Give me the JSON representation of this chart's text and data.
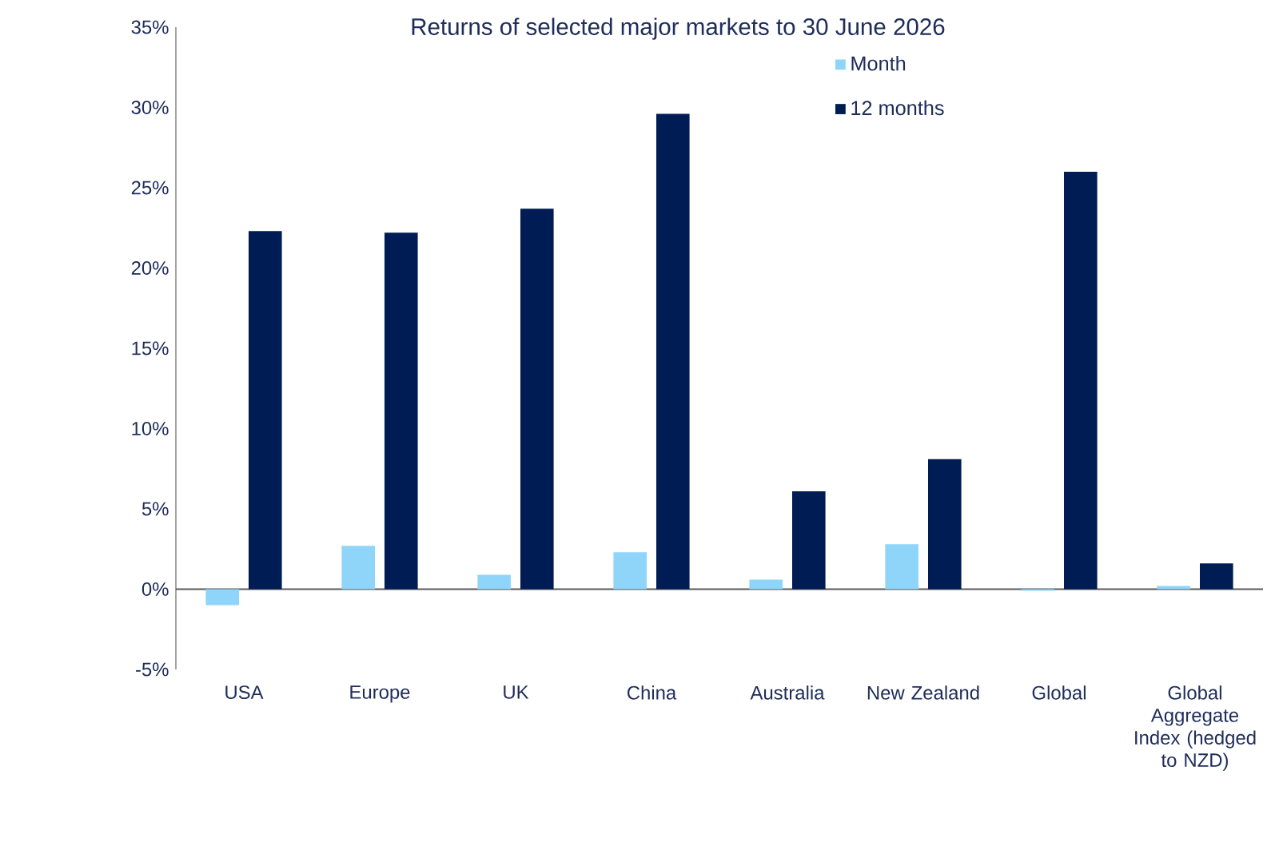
{
  "chart_data": {
    "type": "bar",
    "title": "Returns of selected major markets to 30 June 2026",
    "categories": [
      "USA",
      "Europe",
      "UK",
      "China",
      "Australia",
      "New Zealand",
      "Global",
      "Global Aggregate Index (hedged to NZD)"
    ],
    "series": [
      {
        "name": "Month",
        "color": "#8fd5fa",
        "values": [
          -1.0,
          2.7,
          0.9,
          2.3,
          0.6,
          2.8,
          -0.1,
          0.2
        ]
      },
      {
        "name": "12 months",
        "color": "#001c54",
        "values": [
          22.3,
          22.2,
          23.7,
          29.6,
          6.1,
          8.1,
          26.0,
          1.6
        ]
      }
    ],
    "ylim": [
      -5,
      35
    ],
    "yticks": [
      {
        "value": -5,
        "label": "-5%"
      },
      {
        "value": 0,
        "label": "0%"
      },
      {
        "value": 5,
        "label": "5%"
      },
      {
        "value": 10,
        "label": "10%"
      },
      {
        "value": 15,
        "label": "15%"
      },
      {
        "value": 20,
        "label": "20%"
      },
      {
        "value": 25,
        "label": "25%"
      },
      {
        "value": 30,
        "label": "30%"
      },
      {
        "value": 35,
        "label": "35%"
      }
    ],
    "legend": "top"
  }
}
